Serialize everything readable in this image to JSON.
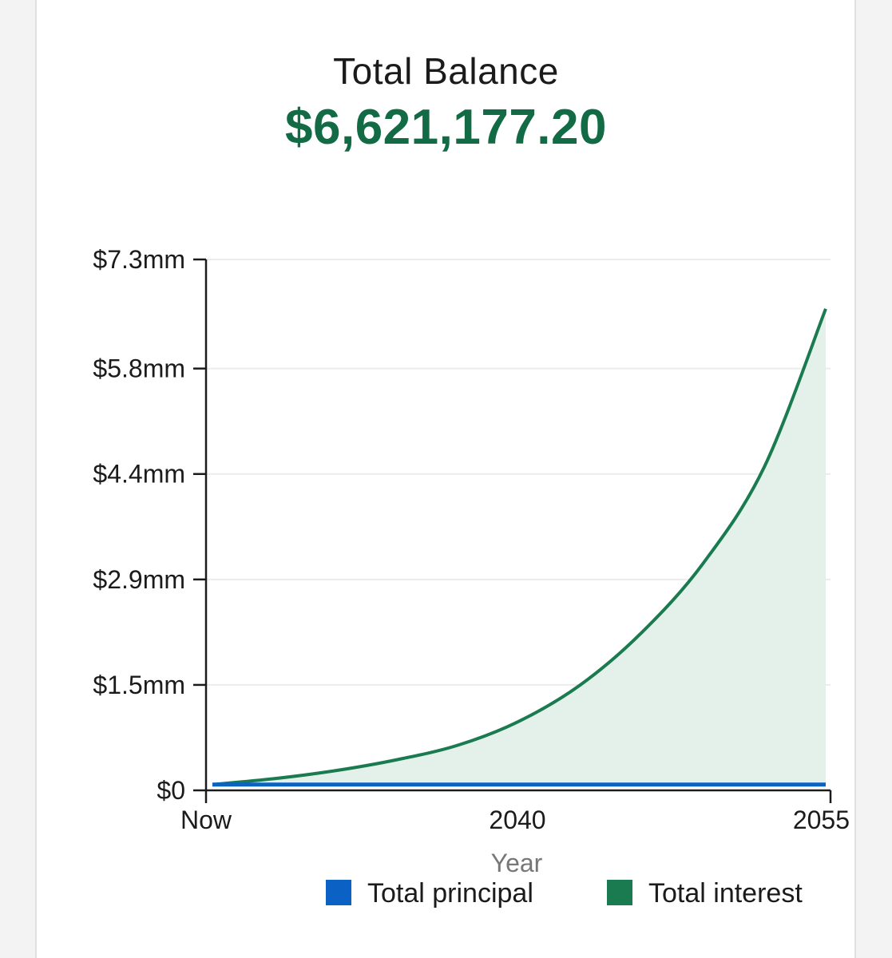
{
  "header": {
    "title": "Total Balance",
    "amount": "$6,621,177.20"
  },
  "colors": {
    "principal": "#0b62c4",
    "interest": "#1a7a50",
    "interest_fill": "#e3f1ea",
    "amount_text": "#126b45"
  },
  "chart_data": {
    "type": "area",
    "xlabel": "Year",
    "ylabel": "",
    "x_ticks": [
      "Now",
      "2040",
      "2055"
    ],
    "y_ticks": [
      "$0",
      "$1.5mm",
      "$2.9mm",
      "$4.4mm",
      "$5.8mm",
      "$7.3mm"
    ],
    "y_tick_values": [
      0,
      1450000,
      2900000,
      4350000,
      5800000,
      7300000
    ],
    "ylim": [
      0,
      7300000
    ],
    "grid": true,
    "legend_position": "bottom-right",
    "years_from_now": [
      0,
      3,
      6,
      9,
      12,
      15,
      18,
      21,
      24,
      27,
      30
    ],
    "series": [
      {
        "name": "Total principal",
        "color_key": "principal",
        "values": [
          80000,
          80000,
          80000,
          80000,
          80000,
          80000,
          80000,
          80000,
          80000,
          80000,
          80000
        ]
      },
      {
        "name": "Total interest",
        "color_key": "interest",
        "values": [
          80000,
          160000,
          270000,
          420000,
          620000,
          950000,
          1450000,
          2170000,
          3120000,
          4450000,
          6621177
        ]
      }
    ]
  }
}
